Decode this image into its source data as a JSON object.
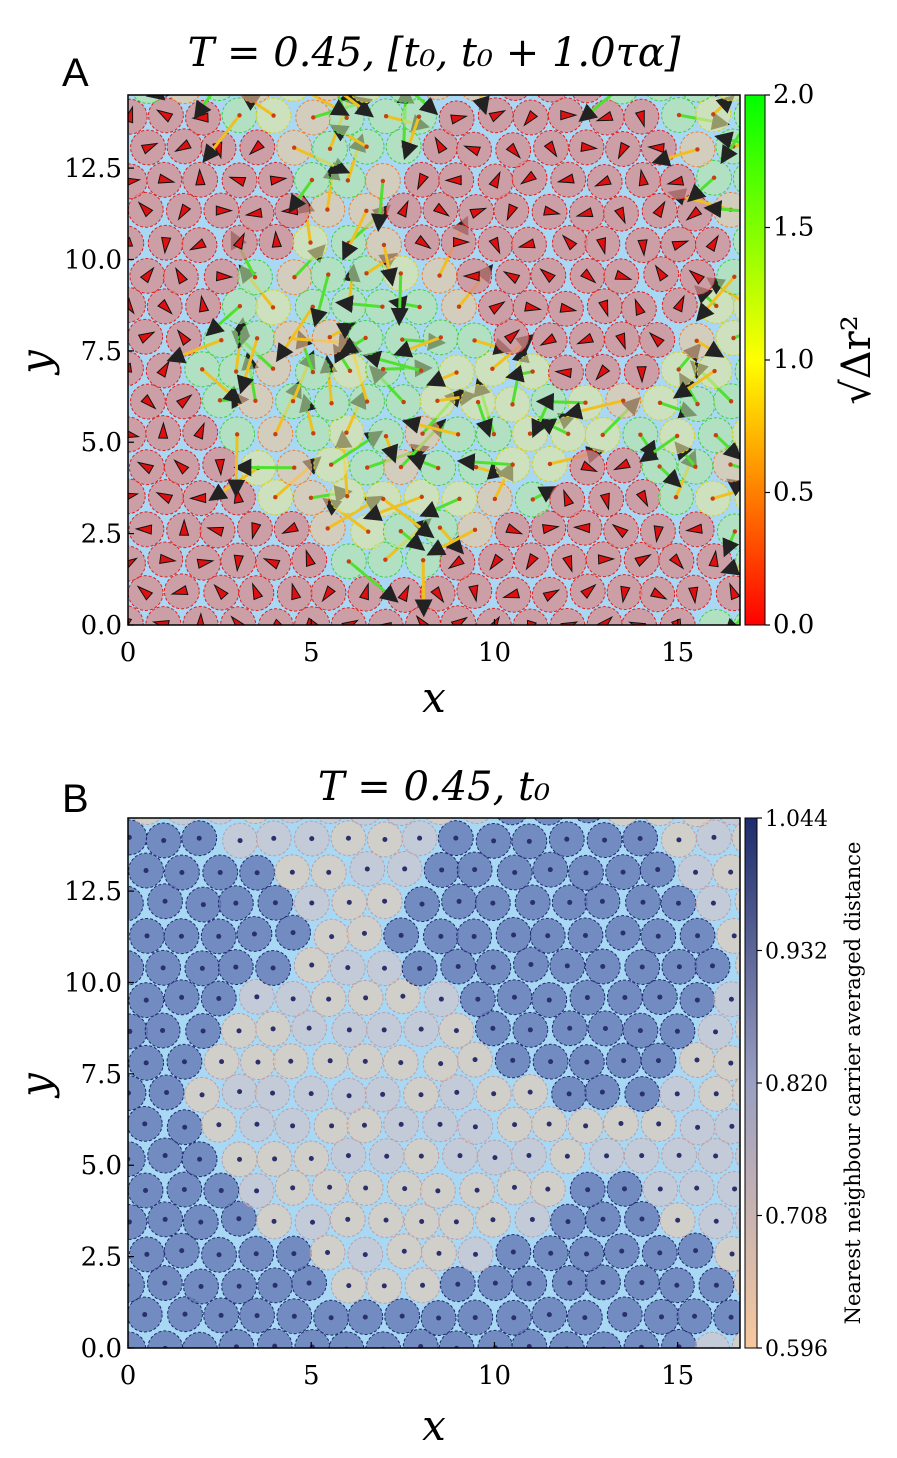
{
  "panels": [
    {
      "panel_label": "A",
      "title": "T = 0.45,  [t₀, t₀ + 1.0τα]",
      "colorbar_label": "√Δr²"
    },
    {
      "panel_label": "B",
      "title": "T = 0.45,  t₀",
      "colorbar_label": "Nearest neighbour carrier averaged distance"
    }
  ],
  "colors": {
    "background_blue": "#a9d8f5",
    "gradient_red": "#ff0000",
    "gradient_yellow": "#ffff00",
    "gradient_green": "#00ff00",
    "gradient_peach": "#f7c89e",
    "gradient_navy": "#1d2c6c"
  },
  "chart_data": [
    {
      "type": "scatter",
      "title": "T = 0.45,  [t₀, t₀ + 1.0τα]",
      "xlabel": "x",
      "ylabel": "y",
      "xlim": [
        0,
        16.7
      ],
      "ylim": [
        0,
        14.5
      ],
      "xticks": [
        "0",
        "5",
        "10",
        "15"
      ],
      "yticks": [
        "0.0",
        "2.5",
        "5.0",
        "7.5",
        "10.0",
        "12.5"
      ],
      "colorbar": {
        "label": "√Δr²",
        "range": [
          0.0,
          2.0
        ],
        "ticks": [
          "0.0",
          "0.5",
          "1.0",
          "1.5",
          "2.0"
        ],
        "colormap": "red-yellow-green"
      },
      "description_of_marks": "disk particles with displacement arrows"
    },
    {
      "type": "scatter",
      "title": "T = 0.45,  t₀",
      "xlabel": "x",
      "ylabel": "y",
      "xlim": [
        0,
        16.7
      ],
      "ylim": [
        0,
        14.5
      ],
      "xticks": [
        "0",
        "5",
        "10",
        "15"
      ],
      "yticks": [
        "0.0",
        "2.5",
        "5.0",
        "7.5",
        "10.0",
        "12.5"
      ],
      "colorbar": {
        "label": "Nearest neighbour carrier averaged distance",
        "range": [
          0.596,
          1.044
        ],
        "ticks": [
          "0.596",
          "0.708",
          "0.820",
          "0.932",
          "1.044"
        ],
        "colormap": "peach-navy"
      }
    }
  ]
}
